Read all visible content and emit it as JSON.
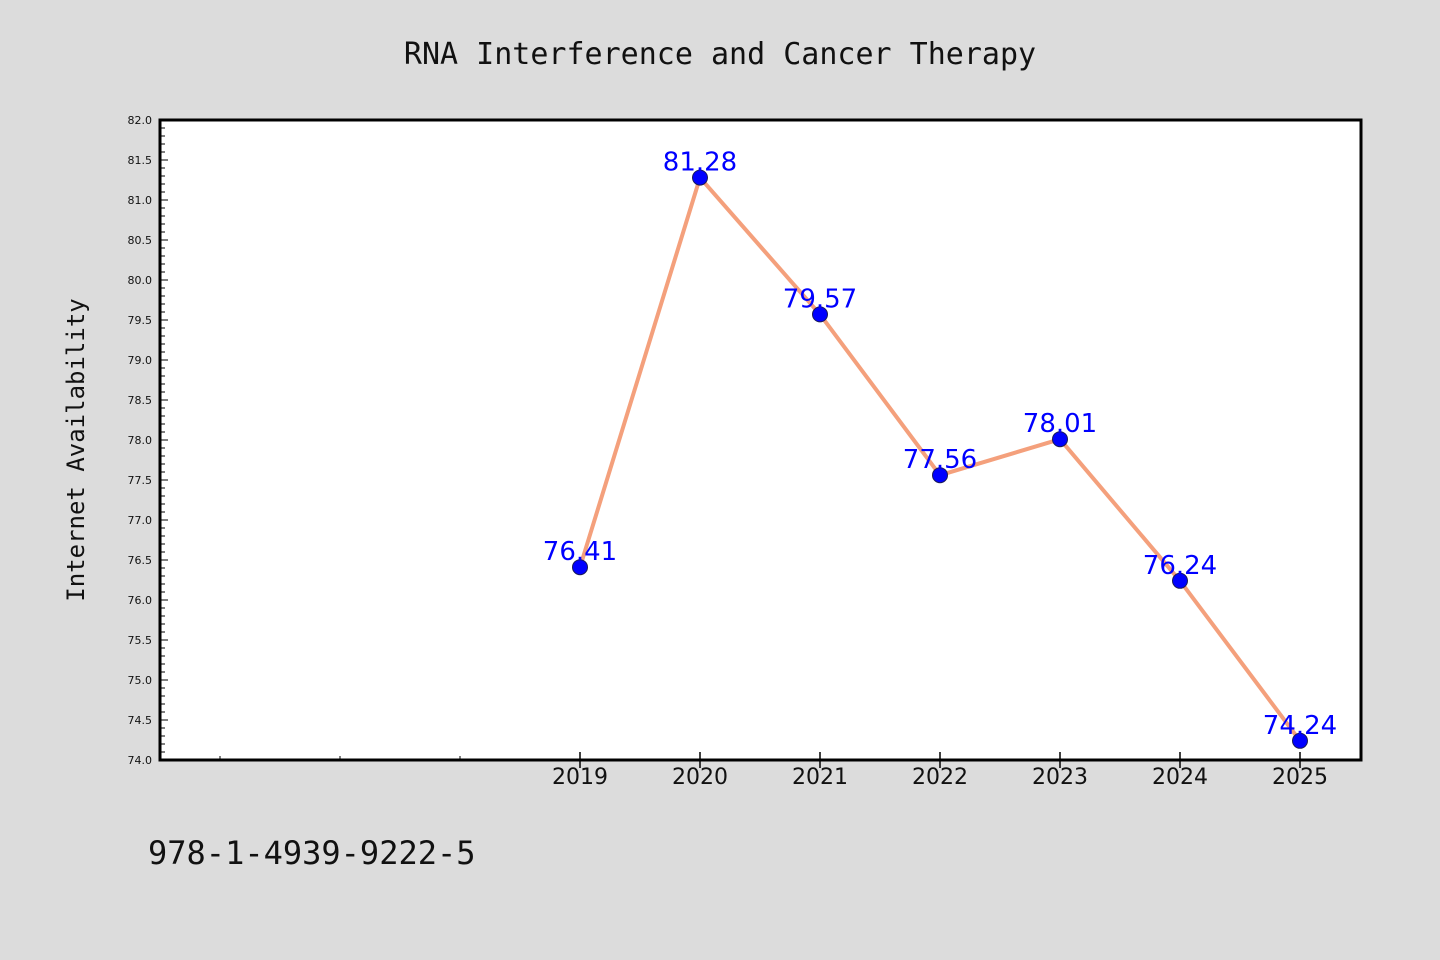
{
  "chart_data": {
    "type": "line",
    "title": "RNA Interference and Cancer Therapy",
    "ylabel": "Internet Availability",
    "xlabel": "",
    "categories": [
      "2019",
      "2020",
      "2021",
      "2022",
      "2023",
      "2024",
      "2025"
    ],
    "series": [
      {
        "values": [
          76.41,
          81.28,
          79.57,
          77.56,
          78.01,
          76.24,
          74.24
        ],
        "data_labels": [
          "76.41",
          "81.28",
          "79.57",
          "77.56",
          "78.01",
          "76.24",
          "74.24"
        ]
      }
    ],
    "ylim": [
      74.0,
      82.0
    ],
    "yticks": [
      "74.0",
      "74.5",
      "75.0",
      "75.5",
      "76.0",
      "76.5",
      "77.0",
      "77.5",
      "78.0",
      "78.5",
      "79.0",
      "79.5",
      "80.0",
      "80.5",
      "81.0",
      "81.5",
      "82.0"
    ],
    "grid": false,
    "legend": "none",
    "colors": {
      "line": "#f4a07c",
      "marker": "#0000ff",
      "data_label": "#0000ff",
      "plot_background": "#ffffff",
      "page_background": "#dcdcdc"
    }
  },
  "footer_text": "978-1-4939-9222-5"
}
